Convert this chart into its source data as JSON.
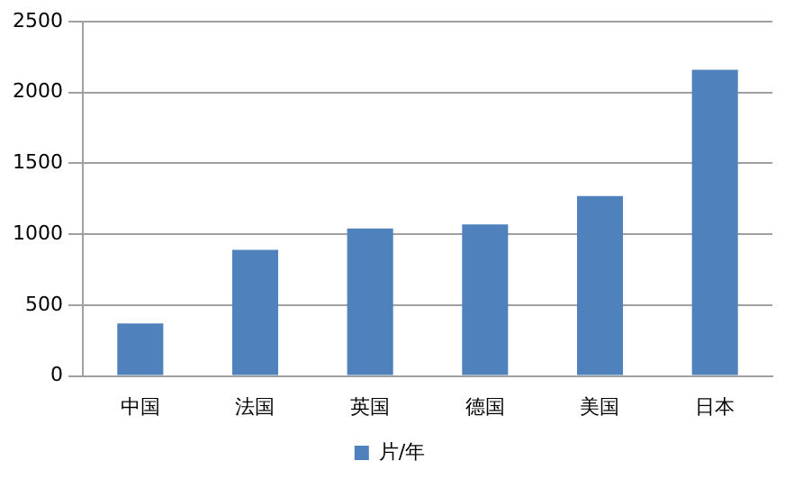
{
  "chart_data": {
    "type": "bar",
    "categories": [
      "中国",
      "法国",
      "英国",
      "德国",
      "美国",
      "日本"
    ],
    "series": [
      {
        "name": "片/年",
        "color": "#4f81bd",
        "values": [
          370,
          890,
          1040,
          1070,
          1270,
          2160
        ]
      }
    ],
    "ylim": [
      0,
      2500
    ],
    "yticks": [
      0,
      500,
      1000,
      1500,
      2000,
      2500
    ],
    "grid": "y",
    "legend": "bottom"
  }
}
